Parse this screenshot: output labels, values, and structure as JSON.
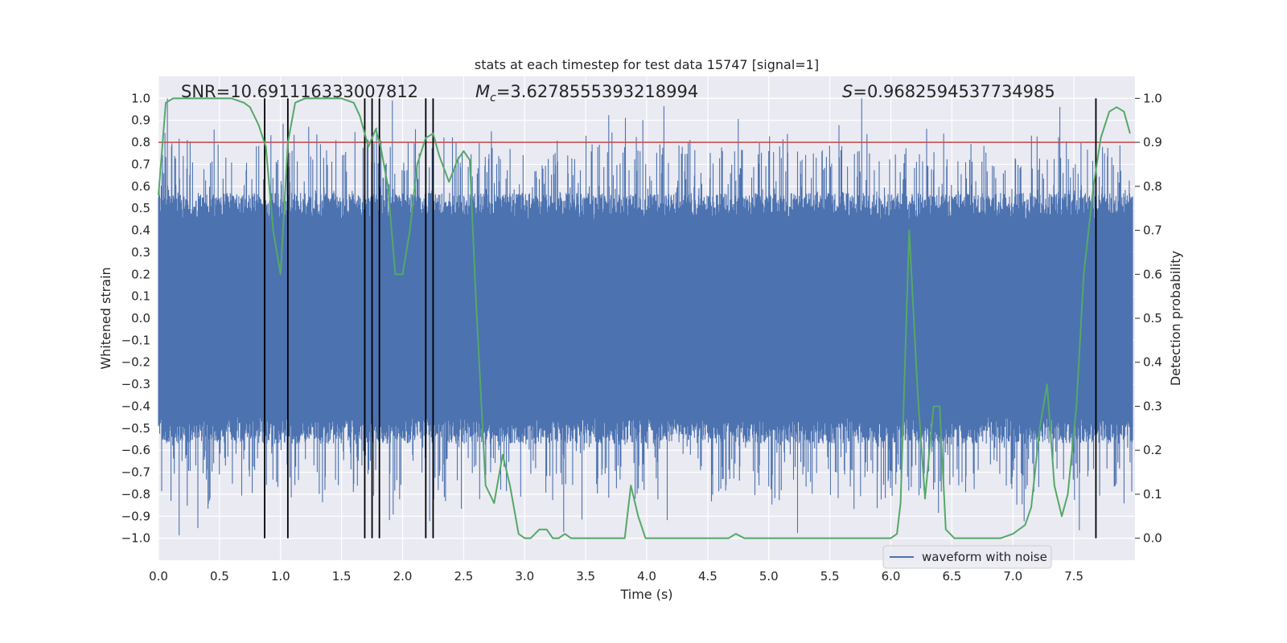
{
  "chart_data": {
    "type": "line",
    "title": "stats at each timestep for test data 15747 [signal=1]",
    "xlabel": "Time (s)",
    "ylabel_left": "Whitened strain",
    "ylabel_right": "Detection probability",
    "xlim": [
      0.0,
      8.0
    ],
    "ylim_left": [
      -1.1,
      1.1
    ],
    "ylim_right": [
      -0.05,
      1.05
    ],
    "grid": true,
    "x_ticks": [
      0.0,
      0.5,
      1.0,
      1.5,
      2.0,
      2.5,
      3.0,
      3.5,
      4.0,
      4.5,
      5.0,
      5.5,
      6.0,
      6.5,
      7.0,
      7.5
    ],
    "x_tick_labels": [
      "0.0",
      "0.5",
      "1.0",
      "1.5",
      "2.0",
      "2.5",
      "3.0",
      "3.5",
      "4.0",
      "4.5",
      "5.0",
      "5.5",
      "6.0",
      "6.5",
      "7.0",
      "7.5"
    ],
    "y_left_ticks": [
      1.0,
      0.9,
      0.8,
      0.7,
      0.6,
      0.5,
      0.4,
      0.3,
      0.2,
      0.1,
      0.0,
      -0.1,
      -0.2,
      -0.3,
      -0.4,
      -0.5,
      -0.6,
      -0.7,
      -0.8,
      -0.9,
      -1.0
    ],
    "y_left_tick_labels": [
      "1.0",
      "0.9",
      "0.8",
      "0.7",
      "0.6",
      "0.5",
      "0.4",
      "0.3",
      "0.2",
      "0.1",
      "0.0",
      "−0.1",
      "−0.2",
      "−0.3",
      "−0.4",
      "−0.5",
      "−0.6",
      "−0.7",
      "−0.8",
      "−0.9",
      "−1.0"
    ],
    "y_right_ticks": [
      1.0,
      0.9,
      0.8,
      0.7,
      0.6,
      0.5,
      0.4,
      0.3,
      0.2,
      0.1,
      0.0
    ],
    "y_right_tick_labels": [
      "1.0",
      "0.9",
      "0.8",
      "0.7",
      "0.6",
      "0.5",
      "0.4",
      "0.3",
      "0.2",
      "0.1",
      "0.0"
    ],
    "annotations": {
      "snr": "SNR=10.691116333007812",
      "mc_symbol": "M",
      "mc_subscript": "c",
      "mc_value": "=3.6278555393218994",
      "s_symbol": "S",
      "s_value": "=0.9682594537734985"
    },
    "threshold": {
      "value": 0.8,
      "axis": "left",
      "color": "#c44e52"
    },
    "vertical_lines": {
      "x": [
        0.87,
        1.06,
        1.69,
        1.75,
        1.81,
        2.19,
        2.25,
        7.68
      ],
      "y_range": [
        -1.0,
        1.0
      ],
      "color": "#000000"
    },
    "series": [
      {
        "name": "waveform with noise",
        "axis": "left",
        "color": "#4c72b0",
        "style": "dense noise waveform",
        "sample_count": 2400,
        "core_amplitude": 0.45,
        "max_value": 1.0,
        "min_value": -1.0
      },
      {
        "name": "detection probability",
        "axis": "right",
        "color": "#55a868",
        "x": [
          0.0,
          0.06,
          0.12,
          0.2,
          0.3,
          0.4,
          0.5,
          0.6,
          0.7,
          0.75,
          0.82,
          0.88,
          0.94,
          1.0,
          1.06,
          1.12,
          1.2,
          1.3,
          1.4,
          1.5,
          1.6,
          1.65,
          1.72,
          1.78,
          1.82,
          1.88,
          1.94,
          2.0,
          2.06,
          2.12,
          2.19,
          2.25,
          2.3,
          2.38,
          2.45,
          2.5,
          2.55,
          2.6,
          2.68,
          2.75,
          2.82,
          2.88,
          2.95,
          3.0,
          3.05,
          3.12,
          3.18,
          3.23,
          3.28,
          3.33,
          3.38,
          3.45,
          3.5,
          3.6,
          3.7,
          3.78,
          3.82,
          3.87,
          3.93,
          3.99,
          4.05,
          4.15,
          4.25,
          4.35,
          4.5,
          4.6,
          4.67,
          4.73,
          4.8,
          4.9,
          5.0,
          5.05,
          5.1,
          5.2,
          5.3,
          5.4,
          5.5,
          5.6,
          5.65,
          5.8,
          5.9,
          6.0,
          6.05,
          6.08,
          6.15,
          6.22,
          6.28,
          6.35,
          6.4,
          6.45,
          6.52,
          6.6,
          6.7,
          6.8,
          6.9,
          7.0,
          7.1,
          7.15,
          7.22,
          7.28,
          7.34,
          7.4,
          7.45,
          7.52,
          7.58,
          7.66,
          7.72,
          7.79,
          7.85,
          7.91,
          7.96
        ],
        "values": [
          0.78,
          0.99,
          1.0,
          1.0,
          1.0,
          1.0,
          1.0,
          1.0,
          0.99,
          0.98,
          0.94,
          0.89,
          0.7,
          0.6,
          0.9,
          0.99,
          1.0,
          1.0,
          1.0,
          1.0,
          0.99,
          0.96,
          0.89,
          0.93,
          0.89,
          0.8,
          0.6,
          0.6,
          0.7,
          0.85,
          0.91,
          0.92,
          0.87,
          0.81,
          0.86,
          0.88,
          0.86,
          0.55,
          0.12,
          0.08,
          0.19,
          0.12,
          0.01,
          0.0,
          0.0,
          0.02,
          0.02,
          0.0,
          0.0,
          0.01,
          0.0,
          0.0,
          0.0,
          0.0,
          0.0,
          0.0,
          0.0,
          0.12,
          0.05,
          0.0,
          0.0,
          0.0,
          0.0,
          0.0,
          0.0,
          0.0,
          0.0,
          0.01,
          0.0,
          0.0,
          0.0,
          0.0,
          0.0,
          0.0,
          0.0,
          0.0,
          0.0,
          0.0,
          0.0,
          0.0,
          0.0,
          0.0,
          0.01,
          0.08,
          0.7,
          0.33,
          0.09,
          0.3,
          0.3,
          0.02,
          0.0,
          0.0,
          0.0,
          0.0,
          0.0,
          0.01,
          0.03,
          0.07,
          0.25,
          0.35,
          0.12,
          0.05,
          0.1,
          0.3,
          0.6,
          0.8,
          0.91,
          0.97,
          0.98,
          0.97,
          0.92
        ]
      }
    ],
    "legend": {
      "location": "lower-right",
      "entries": [
        "waveform with noise"
      ]
    }
  }
}
